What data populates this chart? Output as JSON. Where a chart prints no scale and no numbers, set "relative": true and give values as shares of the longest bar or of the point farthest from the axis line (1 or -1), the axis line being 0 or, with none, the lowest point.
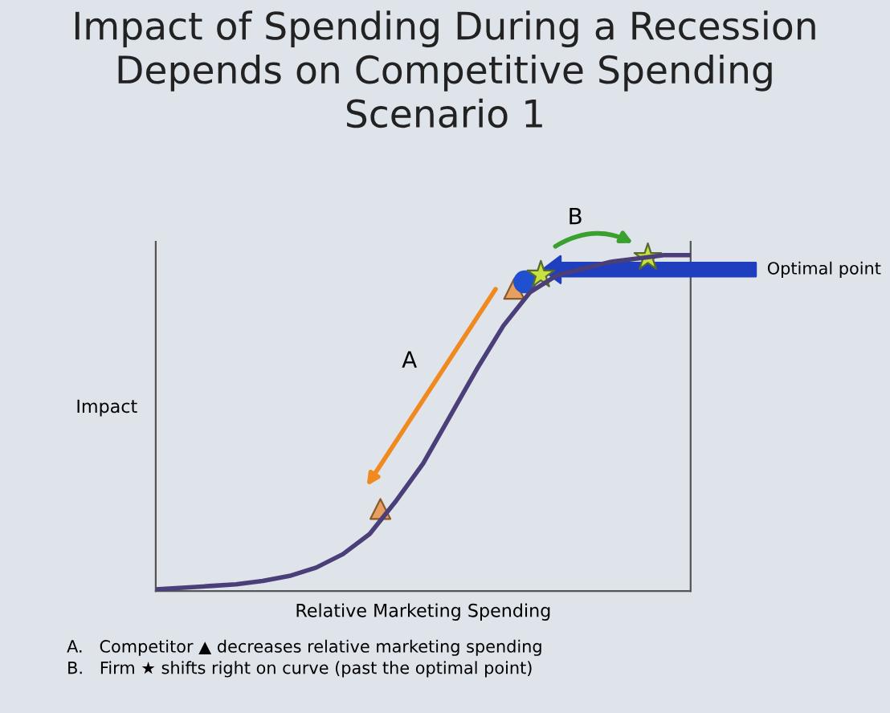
{
  "chart_data": {
    "type": "line",
    "title": "Impact of Spending During a Recession\nDepends on Competitive Spending\nScenario 1",
    "xlabel": "Relative Marketing Spending",
    "ylabel": "Impact",
    "relative": true,
    "categories": [
      null,
      null,
      null,
      null,
      null,
      null,
      null,
      null,
      null,
      null,
      null,
      null,
      null,
      null,
      null,
      null,
      null,
      null,
      null,
      null,
      null
    ],
    "series": [
      {
        "color": "#4a3f78",
        "values": [
          0.005,
          0.01,
          0.015,
          0.02,
          0.03,
          0.045,
          0.07,
          0.11,
          0.17,
          0.27,
          0.38,
          0.52,
          0.66,
          0.79,
          0.89,
          0.94,
          0.96,
          0.98,
          0.99,
          1,
          1
        ]
      }
    ],
    "annotations": [
      "A",
      "B",
      "Optimal point",
      "A.   Competitor ▲ decreases relative marketing spending",
      "B.   Firm ★ shifts right on curve (past the optimal point)"
    ]
  }
}
